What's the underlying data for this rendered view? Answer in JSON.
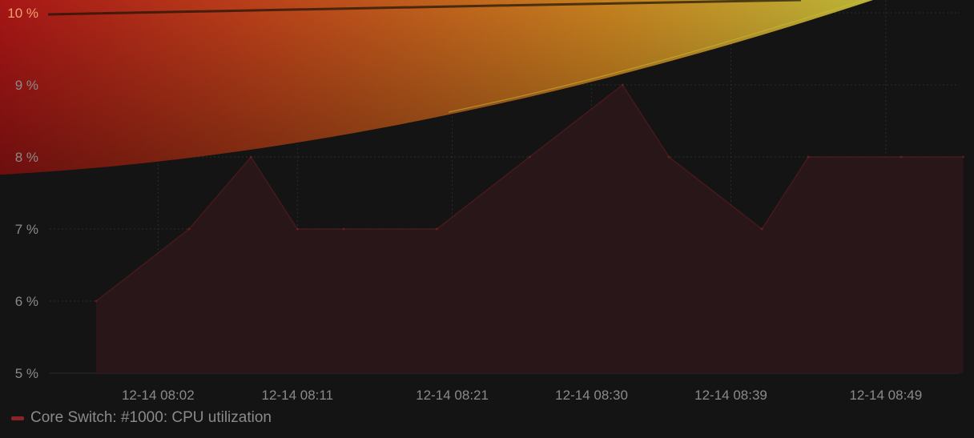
{
  "chart_data": {
    "type": "area",
    "x": [
      "12-14 07:58",
      "12-14 08:04",
      "12-14 08:08",
      "12-14 08:11",
      "12-14 08:14",
      "12-14 08:20",
      "12-14 08:26",
      "12-14 08:32",
      "12-14 08:35",
      "12-14 08:41",
      "12-14 08:44",
      "12-14 08:50",
      "12-14 08:54"
    ],
    "x_ticks": [
      "12-14 08:02",
      "12-14 08:11",
      "12-14 08:21",
      "12-14 08:30",
      "12-14 08:39",
      "12-14 08:49"
    ],
    "series": [
      {
        "name": "Core Switch: #1000: CPU utilization",
        "values": [
          6,
          7,
          8,
          7,
          7,
          7,
          8,
          9,
          8,
          7,
          8,
          8,
          8
        ],
        "color": "#8b2327",
        "fill": "#2a1618"
      }
    ],
    "y_ticks": [
      "5 %",
      "6 %",
      "7 %",
      "8 %",
      "9 %",
      "10 %"
    ],
    "ylim": [
      5,
      10
    ],
    "grid": true,
    "legend_position": "bottom-left",
    "background": "#141414",
    "grid_color": "#2c2c2c",
    "axis_label_color": "#8a8a8a",
    "top_label_color": "#f0a070",
    "threshold_band_colors": [
      "#b31616",
      "#c8451a",
      "#d48a20",
      "#c9c23a"
    ]
  }
}
